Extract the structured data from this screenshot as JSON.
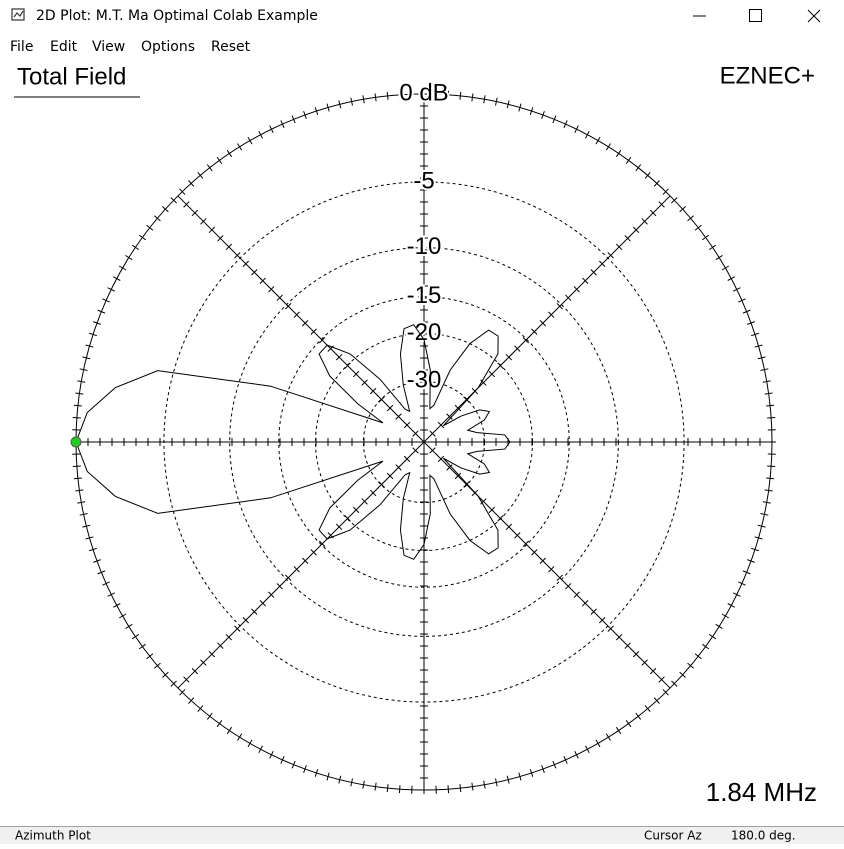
{
  "window": {
    "title": "2D Plot: M.T. Ma Optimal Colab Example"
  },
  "menu": [
    "File",
    "Edit",
    "View",
    "Options",
    "Reset"
  ],
  "plot": {
    "title": "Total Field",
    "brand": "EZNEC+",
    "frequency": "1.84 MHz",
    "rings": [
      {
        "value": 0,
        "label": "0 dB"
      },
      {
        "value": -5,
        "label": "-5"
      },
      {
        "value": -10,
        "label": "-10"
      },
      {
        "value": -15,
        "label": "-15"
      },
      {
        "value": -20,
        "label": "-20"
      },
      {
        "value": -30,
        "label": "-30"
      }
    ],
    "pattern": {
      "azimuth": [
        0,
        5,
        10,
        15,
        20,
        25,
        30,
        35,
        40,
        45,
        50,
        55,
        60,
        65,
        70,
        75,
        80,
        85,
        90,
        95,
        100,
        105,
        110,
        115,
        120,
        125,
        130,
        135,
        140,
        145,
        150,
        155,
        160,
        165,
        170,
        175,
        180,
        185,
        190,
        195,
        200,
        205,
        210,
        215,
        220,
        225,
        230,
        235,
        240,
        245,
        250,
        255,
        260,
        265,
        270,
        275,
        280,
        285,
        290,
        295,
        300,
        305,
        310,
        315,
        320,
        325,
        330,
        335,
        340,
        345,
        350,
        355
      ],
      "gain": [
        -24,
        -25,
        -32,
        -35,
        -29,
        -27,
        -29,
        -35,
        -45,
        -26,
        -19,
        -17,
        -17,
        -20,
        -26,
        -38,
        -40,
        -27,
        -21,
        -18.6,
        -19,
        -23,
        -30,
        -40,
        -38,
        -26,
        -19,
        -16,
        -16,
        -19,
        -26,
        -35,
        -13,
        -4,
        -1.8,
        -0.5,
        0,
        -0.5,
        -1.8,
        -4,
        -13,
        -35,
        -26,
        -19,
        -16,
        -16,
        -19,
        -26,
        -38,
        -40,
        -30,
        -23,
        -19,
        -18.6,
        -21,
        -27,
        -40,
        -38,
        -26,
        -20,
        -17,
        -17,
        -19,
        -26,
        -45,
        -35,
        -29,
        -27,
        -29,
        -35,
        -32,
        -25
      ]
    },
    "cursor_index": 36
  },
  "status": {
    "plot_type": "Azimuth Plot",
    "cursor_label": "Cursor Az",
    "cursor_value": "180.0 deg."
  }
}
